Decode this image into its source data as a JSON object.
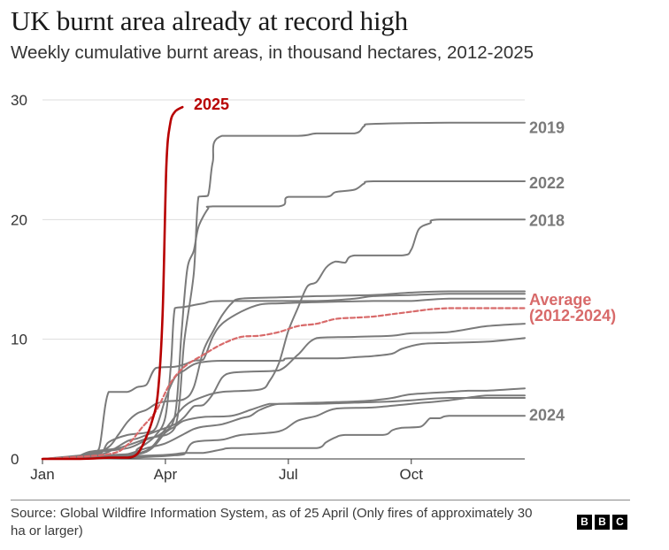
{
  "title": "UK burnt area already at record high",
  "subtitle": "Weekly cumulative burnt areas, in thousand hectares, 2012-2025",
  "source": "Source: Global Wildfire Information System, as of 25 April (Only fires of approximately 30 ha or larger)",
  "logo": [
    "B",
    "B",
    "C"
  ],
  "colors": {
    "highlight": "#b80000",
    "average": "#d86a6a",
    "years": "#7a7a7a",
    "axis": "#333333",
    "grid": "#dddddd"
  },
  "chart_data": {
    "type": "line",
    "title": "UK burnt area already at record high",
    "subtitle": "Weekly cumulative burnt areas, in thousand hectares, 2012-2025",
    "x_unit": "week of year",
    "xlim": [
      1,
      52
    ],
    "ylim": [
      0,
      30
    ],
    "yticks": [
      0,
      10,
      20,
      30
    ],
    "xticks": [
      {
        "label": "Jan",
        "week": 1
      },
      {
        "label": "Apr",
        "week": 14
      },
      {
        "label": "Jul",
        "week": 27
      },
      {
        "label": "Oct",
        "week": 40
      }
    ],
    "grid": "horizontal",
    "series": [
      {
        "name": "2025",
        "style": "highlight",
        "points": [
          [
            1,
            0
          ],
          [
            5,
            0
          ],
          [
            8,
            0.1
          ],
          [
            10,
            0.1
          ],
          [
            11,
            0.4
          ],
          [
            11.8,
            1.5
          ],
          [
            12.6,
            3.2
          ],
          [
            13.2,
            5.5
          ],
          [
            13.7,
            12
          ],
          [
            14.1,
            24.5
          ],
          [
            14.5,
            28
          ],
          [
            15,
            29
          ],
          [
            15.8,
            29.4
          ]
        ]
      },
      {
        "name": "Average (2012-2024)",
        "style": "average",
        "points": [
          [
            1,
            0
          ],
          [
            8,
            0.4
          ],
          [
            10,
            1.2
          ],
          [
            11.5,
            2.6
          ],
          [
            13,
            4
          ],
          [
            14.5,
            6.3
          ],
          [
            16,
            7.7
          ],
          [
            18,
            8.7
          ],
          [
            20,
            9.6
          ],
          [
            22,
            10.2
          ],
          [
            24,
            10.3
          ],
          [
            26,
            10.6
          ],
          [
            28,
            11.1
          ],
          [
            30,
            11.3
          ],
          [
            32,
            11.7
          ],
          [
            34,
            11.8
          ],
          [
            36,
            11.9
          ],
          [
            38,
            12.1
          ],
          [
            40,
            12.3
          ],
          [
            42,
            12.5
          ],
          [
            44,
            12.6
          ],
          [
            46,
            12.6
          ],
          [
            48,
            12.6
          ],
          [
            52,
            12.6
          ]
        ]
      },
      {
        "name": "2019",
        "style": "year",
        "points": [
          [
            1,
            0
          ],
          [
            4,
            0
          ],
          [
            6,
            0.6
          ],
          [
            9,
            0.9
          ],
          [
            12,
            1.7
          ],
          [
            15,
            2.6
          ],
          [
            16,
            9.9
          ],
          [
            17,
            15.5
          ],
          [
            17.5,
            21.9
          ],
          [
            18.5,
            22
          ],
          [
            19,
            24.8
          ],
          [
            20,
            27
          ],
          [
            28,
            27
          ],
          [
            30,
            27.2
          ],
          [
            34,
            27.2
          ],
          [
            35,
            27.8
          ],
          [
            36,
            28
          ],
          [
            44,
            28.1
          ],
          [
            52,
            28.1
          ]
        ]
      },
      {
        "name": "2022",
        "style": "year",
        "points": [
          [
            1,
            0
          ],
          [
            4,
            0
          ],
          [
            6,
            0.5
          ],
          [
            10,
            0.9
          ],
          [
            12,
            1.6
          ],
          [
            13.5,
            2.1
          ],
          [
            15,
            3.6
          ],
          [
            15.7,
            10.5
          ],
          [
            16.3,
            15.8
          ],
          [
            17,
            17.4
          ],
          [
            17.5,
            19.4
          ],
          [
            18.5,
            20.9
          ],
          [
            19,
            21.1
          ],
          [
            26,
            21.1
          ],
          [
            27,
            21.9
          ],
          [
            31,
            21.9
          ],
          [
            32,
            22.3
          ],
          [
            34,
            22.5
          ],
          [
            35,
            23
          ],
          [
            36,
            23.2
          ],
          [
            44,
            23.2
          ],
          [
            52,
            23.2
          ]
        ]
      },
      {
        "name": "2018",
        "style": "year",
        "points": [
          [
            1,
            0
          ],
          [
            8,
            0.3
          ],
          [
            12,
            0.7
          ],
          [
            14,
            2.5
          ],
          [
            16,
            4.4
          ],
          [
            18,
            5.2
          ],
          [
            20,
            5.6
          ],
          [
            24,
            5.8
          ],
          [
            25,
            6.5
          ],
          [
            26,
            8
          ],
          [
            27,
            10.7
          ],
          [
            28,
            12.6
          ],
          [
            29,
            14.4
          ],
          [
            30,
            14.8
          ],
          [
            31,
            16
          ],
          [
            32,
            16.5
          ],
          [
            33,
            16.4
          ],
          [
            34,
            17
          ],
          [
            39,
            17
          ],
          [
            40,
            17.5
          ],
          [
            40.8,
            19.2
          ],
          [
            42,
            19.7
          ],
          [
            43,
            20
          ],
          [
            52,
            20
          ]
        ]
      },
      {
        "name": "2024",
        "style": "year",
        "points": [
          [
            1,
            0
          ],
          [
            13,
            0.3
          ],
          [
            16,
            0.5
          ],
          [
            18,
            0.5
          ],
          [
            20,
            0.8
          ],
          [
            21,
            0.9
          ],
          [
            26,
            0.9
          ],
          [
            30,
            0.9
          ],
          [
            31,
            1.4
          ],
          [
            32,
            1.8
          ],
          [
            33,
            2
          ],
          [
            37,
            2
          ],
          [
            38,
            2.4
          ],
          [
            39,
            2.6
          ],
          [
            41,
            2.7
          ],
          [
            42,
            3.4
          ],
          [
            43,
            3.4
          ],
          [
            44,
            3.6
          ],
          [
            48,
            3.6
          ],
          [
            52,
            3.6
          ]
        ]
      },
      {
        "name": "",
        "style": "year",
        "points": [
          [
            1,
            0
          ],
          [
            4,
            0.1
          ],
          [
            7,
            0.4
          ],
          [
            8,
            1.4
          ],
          [
            10,
            2
          ],
          [
            12,
            2.2
          ],
          [
            13,
            2.6
          ],
          [
            14,
            5
          ],
          [
            15,
            6.8
          ],
          [
            16,
            7.4
          ],
          [
            17,
            7.9
          ],
          [
            18,
            8.1
          ],
          [
            20,
            8.2
          ],
          [
            26,
            8.2
          ],
          [
            27,
            8.4
          ],
          [
            32,
            8.4
          ],
          [
            34,
            8.5
          ],
          [
            36,
            8.6
          ],
          [
            38,
            8.8
          ],
          [
            39,
            9.2
          ],
          [
            41,
            9.6
          ],
          [
            44,
            9.7
          ],
          [
            48,
            9.8
          ],
          [
            52,
            10.1
          ]
        ]
      },
      {
        "name": "",
        "style": "year",
        "points": [
          [
            1,
            0
          ],
          [
            6,
            0.2
          ],
          [
            8,
            0.6
          ],
          [
            10,
            1.5
          ],
          [
            11,
            1.7
          ],
          [
            12,
            2
          ],
          [
            13,
            2.3
          ],
          [
            15,
            2.9
          ],
          [
            16,
            3.5
          ],
          [
            17,
            4.4
          ],
          [
            18,
            4.5
          ],
          [
            19,
            5.4
          ],
          [
            20,
            6.8
          ],
          [
            21,
            7.2
          ],
          [
            23,
            7.3
          ],
          [
            26,
            7.4
          ],
          [
            28,
            8.7
          ],
          [
            30,
            10.1
          ],
          [
            34,
            10.2
          ],
          [
            38,
            10.3
          ],
          [
            40,
            10.5
          ],
          [
            44,
            10.6
          ],
          [
            48,
            11.1
          ],
          [
            52,
            11.3
          ]
        ]
      },
      {
        "name": "",
        "style": "year",
        "points": [
          [
            1,
            0
          ],
          [
            10,
            0.1
          ],
          [
            11,
            0.8
          ],
          [
            12,
            1.3
          ],
          [
            13,
            2
          ],
          [
            14,
            3.5
          ],
          [
            14.6,
            8
          ],
          [
            15,
            12.6
          ],
          [
            16,
            12.7
          ],
          [
            18,
            13
          ],
          [
            20,
            13.2
          ],
          [
            30,
            13.2
          ],
          [
            34,
            13.4
          ],
          [
            36,
            13.6
          ],
          [
            40,
            13.7
          ],
          [
            44,
            13.8
          ],
          [
            52,
            13.8
          ]
        ]
      },
      {
        "name": "",
        "style": "year",
        "points": [
          [
            1,
            0
          ],
          [
            6,
            0.3
          ],
          [
            8,
            1
          ],
          [
            9,
            2
          ],
          [
            10,
            3.1
          ],
          [
            11,
            3.8
          ],
          [
            12,
            4.1
          ],
          [
            13,
            4.6
          ],
          [
            14,
            4.8
          ],
          [
            16,
            5
          ],
          [
            17,
            6
          ],
          [
            18,
            9
          ],
          [
            19,
            10.6
          ],
          [
            20,
            12
          ],
          [
            21,
            13
          ],
          [
            22,
            13.4
          ],
          [
            26,
            13.5
          ],
          [
            30,
            13.6
          ],
          [
            36,
            13.7
          ],
          [
            40,
            13.9
          ],
          [
            44,
            14
          ],
          [
            52,
            14
          ]
        ]
      },
      {
        "name": "",
        "style": "year",
        "points": [
          [
            1,
            0
          ],
          [
            6,
            0.4
          ],
          [
            7,
            0.9
          ],
          [
            8,
            5.6
          ],
          [
            10,
            5.6
          ],
          [
            11,
            6
          ],
          [
            12,
            6.2
          ],
          [
            13,
            7.6
          ],
          [
            15,
            7.7
          ],
          [
            16,
            7.9
          ],
          [
            17,
            8.2
          ],
          [
            18,
            8.3
          ],
          [
            19,
            10.2
          ],
          [
            20,
            11.3
          ],
          [
            22,
            12.3
          ],
          [
            24,
            12.9
          ],
          [
            26,
            13
          ],
          [
            30,
            13.1
          ],
          [
            36,
            13.2
          ],
          [
            40,
            13.2
          ],
          [
            44,
            13.4
          ],
          [
            52,
            13.4
          ]
        ]
      },
      {
        "name": "",
        "style": "year",
        "points": [
          [
            1,
            0
          ],
          [
            8,
            0.2
          ],
          [
            12,
            0.6
          ],
          [
            14,
            2.2
          ],
          [
            15,
            2.7
          ],
          [
            16,
            3.2
          ],
          [
            18,
            3.5
          ],
          [
            21,
            3.6
          ],
          [
            23,
            4.1
          ],
          [
            25,
            4.6
          ],
          [
            26,
            4.6
          ],
          [
            30,
            4.7
          ],
          [
            34,
            4.8
          ],
          [
            36,
            4.9
          ],
          [
            38,
            5.1
          ],
          [
            40,
            5.4
          ],
          [
            44,
            5.6
          ],
          [
            46,
            5.7
          ],
          [
            48,
            5.7
          ],
          [
            52,
            5.9
          ]
        ]
      },
      {
        "name": "",
        "style": "year",
        "points": [
          [
            1,
            0
          ],
          [
            8,
            0.2
          ],
          [
            10,
            0.4
          ],
          [
            12,
            0.9
          ],
          [
            14,
            1.3
          ],
          [
            16,
            2.1
          ],
          [
            17,
            2.5
          ],
          [
            18,
            2.7
          ],
          [
            20,
            2.9
          ],
          [
            22,
            3.4
          ],
          [
            23,
            3.6
          ],
          [
            24,
            4.1
          ],
          [
            26,
            4.6
          ],
          [
            30,
            4.6
          ],
          [
            34,
            4.7
          ],
          [
            38,
            4.8
          ],
          [
            40,
            4.9
          ],
          [
            44,
            5.1
          ],
          [
            52,
            5.1
          ]
        ]
      },
      {
        "name": "",
        "style": "year",
        "points": [
          [
            1,
            0
          ],
          [
            10,
            0.1
          ],
          [
            13,
            0.2
          ],
          [
            15,
            0.3
          ],
          [
            16,
            0.4
          ],
          [
            17,
            1.4
          ],
          [
            20,
            1.6
          ],
          [
            22,
            2
          ],
          [
            26,
            2.3
          ],
          [
            28,
            3.2
          ],
          [
            30,
            3.6
          ],
          [
            32,
            4.2
          ],
          [
            36,
            4.3
          ],
          [
            40,
            4.6
          ],
          [
            44,
            4.9
          ],
          [
            48,
            5.3
          ],
          [
            52,
            5.3
          ]
        ]
      }
    ],
    "labels": [
      {
        "text": "2025",
        "series": "2025"
      },
      {
        "text": "2019",
        "series": "2019"
      },
      {
        "text": "2022",
        "series": "2022"
      },
      {
        "text": "2018",
        "series": "2018"
      },
      {
        "text": "Average",
        "series": "Average (2012-2024)"
      },
      {
        "text": "(2012-2024)",
        "series": "Average (2012-2024)"
      },
      {
        "text": "2024",
        "series": "2024"
      }
    ]
  }
}
